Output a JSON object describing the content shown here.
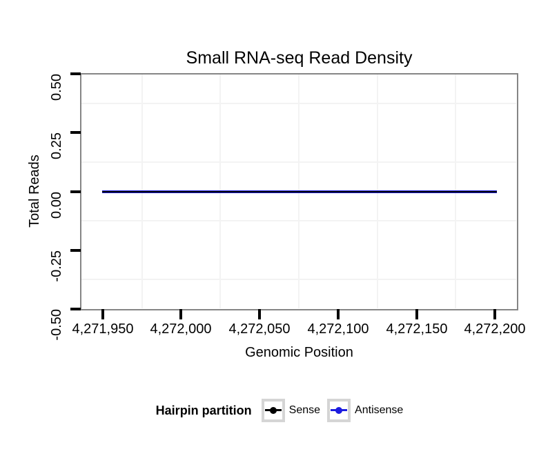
{
  "chart_data": {
    "type": "line",
    "title": "Small RNA-seq Read Density",
    "xlabel": "Genomic Position",
    "ylabel": "Total Reads",
    "xlim": [
      4271936,
      4272214
    ],
    "ylim": [
      -0.5,
      0.5
    ],
    "x_ticks": [
      {
        "value": 4271950,
        "label": "4,271,950"
      },
      {
        "value": 4272000,
        "label": "4,272,000"
      },
      {
        "value": 4272050,
        "label": "4,272,050"
      },
      {
        "value": 4272100,
        "label": "4,272,100"
      },
      {
        "value": 4272150,
        "label": "4,272,150"
      },
      {
        "value": 4272200,
        "label": "4,272,200"
      }
    ],
    "y_ticks": [
      {
        "value": 0.5,
        "label": "0.50"
      },
      {
        "value": 0.25,
        "label": "0.25"
      },
      {
        "value": 0,
        "label": "0.00"
      },
      {
        "value": -0.25,
        "label": "-0.25"
      },
      {
        "value": -0.5,
        "label": "-0.50"
      }
    ],
    "x_minor_gridlines": [
      4271975,
      4272025,
      4272075,
      4272125,
      4272175
    ],
    "y_minor_gridlines": [
      0.375,
      0.125,
      -0.125,
      -0.375
    ],
    "grid": "minor-only",
    "legend": {
      "title": "Hairpin partition",
      "position": "bottom",
      "entries": [
        {
          "name": "Sense",
          "color": "#000000"
        },
        {
          "name": "Antisense",
          "color": "#1c1ce0"
        }
      ]
    },
    "series": [
      {
        "name": "Sense",
        "color": "#000000",
        "x": [
          4271950,
          4272200
        ],
        "y": [
          0,
          0
        ]
      },
      {
        "name": "Antisense",
        "color": "#1c1ce0",
        "x": [
          4271950,
          4272200
        ],
        "y": [
          0,
          0
        ]
      }
    ]
  },
  "colors": {
    "background": "#ffffff",
    "panel_border": "#858585",
    "panel_background": "#ffffff",
    "minor_gridline": "#f3f3f3",
    "tick_mark": "#000000",
    "text": "#000000",
    "overlap_line_edge": "#30307a",
    "legend_key_border": "#d5d5d5",
    "legend_key_background": "#ffffff"
  }
}
